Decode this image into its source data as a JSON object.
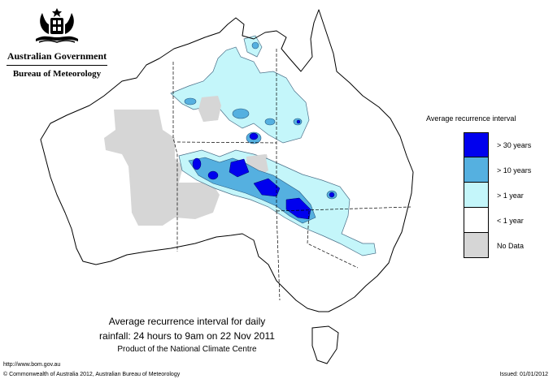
{
  "header": {
    "crest_icon": "coat-of-arms-icon",
    "government": "Australian Government",
    "bureau": "Bureau of Meteorology"
  },
  "legend": {
    "title": "Average recurrence interval",
    "items": [
      {
        "label": "> 30 years",
        "color": "#0000ee"
      },
      {
        "label": "> 10 years",
        "color": "#55b0e0"
      },
      {
        "label": "> 1 year",
        "color": "#c4f6fa"
      },
      {
        "label": "< 1 year",
        "color": "#ffffff"
      },
      {
        "label": "No Data",
        "color": "#d6d6d6"
      }
    ]
  },
  "caption": {
    "line1": "Average recurrence interval for daily",
    "line2": "rainfall: 24 hours to 9am on 22 Nov 2011",
    "line3": "Product of the National Climate Centre"
  },
  "footer": {
    "url": "http://www.bom.gov.au",
    "copyright": "© Commonwealth of Australia 2012, Australian Bureau of Meteorology",
    "issued": "Issued: 01/01/2012"
  }
}
